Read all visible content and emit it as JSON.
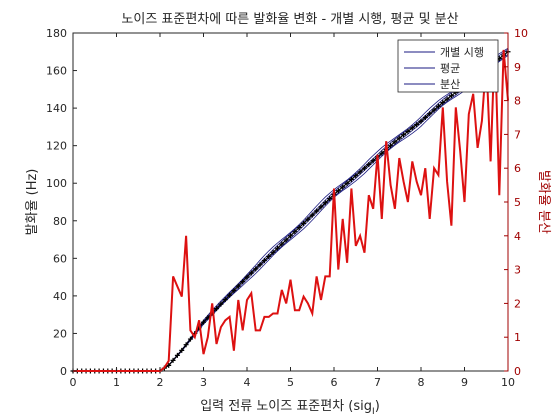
{
  "chart_data": {
    "type": "line",
    "title": "노이즈 표준편차에 따른 발화율 변화 - 개별 시행, 평균 및 분산",
    "xlabel": "입력 전류 노이즈 표준편차 (sig",
    "xlabel_sub": "I",
    "xlabel_close": ")",
    "ylabel_left": "발화율 (Hz)",
    "ylabel_right": "발화율 분산",
    "xlim": [
      0,
      10
    ],
    "ylim_left": [
      0,
      180
    ],
    "ylim_right": [
      0,
      10
    ],
    "xticks": [
      0,
      1,
      2,
      3,
      4,
      5,
      6,
      7,
      8,
      9,
      10
    ],
    "yticks_left": [
      0,
      20,
      40,
      60,
      80,
      100,
      120,
      140,
      160,
      180
    ],
    "yticks_right": [
      0,
      1,
      2,
      3,
      4,
      5,
      6,
      7,
      8,
      9,
      10
    ],
    "grid": false,
    "legend_position": "top-right",
    "colors": {
      "trials": "#1a1a80",
      "mean": "#000000",
      "variance": "#dd1111",
      "right_axis": "#a00000",
      "axes": "#262626"
    },
    "mean_curve": {
      "x": [
        0,
        2.0,
        2.2,
        2.5,
        3,
        3.5,
        4,
        4.5,
        5,
        5.5,
        6,
        6.5,
        7,
        7.5,
        8,
        8.5,
        9,
        9.5,
        10
      ],
      "y": [
        0,
        0,
        3,
        11,
        26,
        38,
        50,
        61,
        72,
        83,
        94,
        104,
        114,
        124,
        133,
        143,
        152,
        161,
        170
      ]
    },
    "series": [
      {
        "name": "개별 시행",
        "axis": "left",
        "style": "thin blue lines, overlapping trials"
      },
      {
        "name": "평균",
        "axis": "left",
        "style": "black line with + markers"
      },
      {
        "name": "분산",
        "axis": "right",
        "x": [
          0,
          0.2,
          0.4,
          0.6,
          0.8,
          1.0,
          1.2,
          1.4,
          1.6,
          1.8,
          2.0,
          2.1,
          2.2,
          2.3,
          2.4,
          2.5,
          2.6,
          2.7,
          2.8,
          2.9,
          3.0,
          3.1,
          3.2,
          3.3,
          3.4,
          3.5,
          3.6,
          3.7,
          3.8,
          3.9,
          4.0,
          4.1,
          4.2,
          4.3,
          4.4,
          4.5,
          4.6,
          4.7,
          4.8,
          4.9,
          5.0,
          5.1,
          5.2,
          5.3,
          5.4,
          5.5,
          5.6,
          5.7,
          5.8,
          5.9,
          6.0,
          6.1,
          6.2,
          6.3,
          6.4,
          6.5,
          6.6,
          6.7,
          6.8,
          6.9,
          7.0,
          7.1,
          7.2,
          7.3,
          7.4,
          7.5,
          7.6,
          7.7,
          7.8,
          7.9,
          8.0,
          8.1,
          8.2,
          8.3,
          8.4,
          8.5,
          8.6,
          8.7,
          8.8,
          8.9,
          9.0,
          9.1,
          9.2,
          9.3,
          9.4,
          9.5,
          9.6,
          9.7,
          9.8,
          9.9,
          10.0
        ],
        "values": [
          0,
          0,
          0,
          0,
          0,
          0,
          0,
          0,
          0,
          0,
          0,
          0.1,
          0.3,
          2.8,
          2.5,
          2.2,
          4.0,
          1.2,
          1.0,
          1.5,
          0.5,
          1.0,
          2.0,
          0.8,
          1.3,
          1.5,
          1.6,
          0.6,
          2.1,
          1.2,
          2.1,
          2.3,
          1.2,
          1.2,
          1.6,
          1.6,
          1.7,
          1.7,
          2.4,
          2.0,
          2.7,
          1.8,
          1.8,
          2.2,
          2.0,
          1.7,
          2.8,
          2.1,
          2.8,
          2.8,
          5.4,
          3.0,
          4.5,
          3.2,
          5.4,
          3.7,
          4.0,
          3.5,
          5.2,
          4.8,
          6.4,
          4.5,
          6.8,
          5.5,
          4.8,
          6.3,
          5.6,
          5.0,
          6.2,
          5.6,
          5.2,
          6.0,
          4.5,
          6.0,
          5.8,
          7.8,
          5.6,
          4.3,
          7.8,
          6.5,
          5.0,
          7.6,
          8.2,
          6.6,
          7.4,
          9.2,
          6.2,
          9.8,
          5.2,
          9.5,
          8.0
        ]
      }
    ]
  }
}
